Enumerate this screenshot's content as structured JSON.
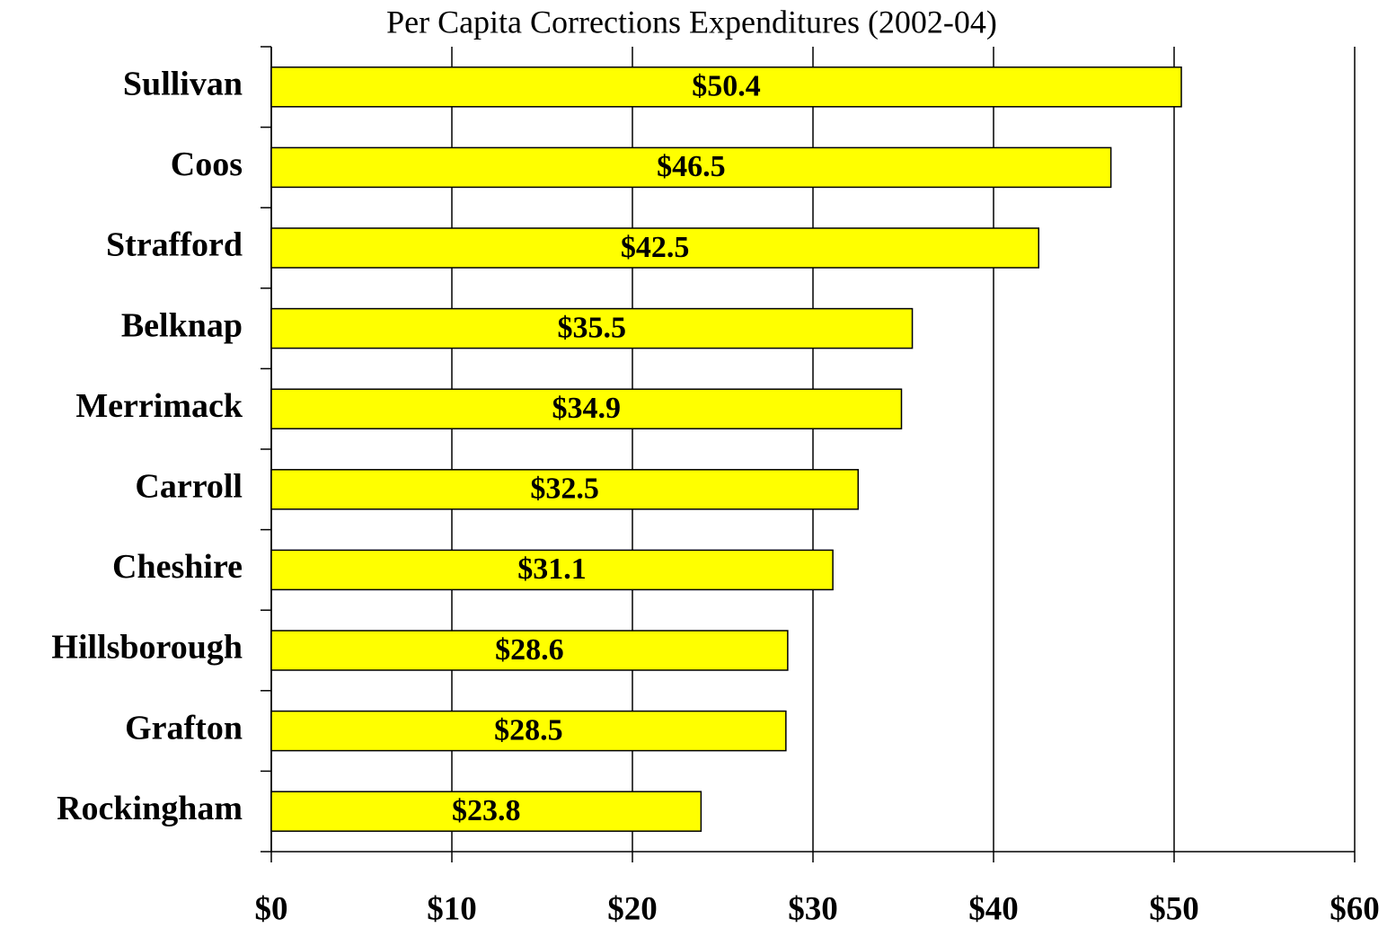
{
  "chart_data": {
    "type": "bar",
    "orientation": "horizontal",
    "title": "Per Capita Corrections Expenditures (2002-04)",
    "categories": [
      "Sullivan",
      "Coos",
      "Strafford",
      "Belknap",
      "Merrimack",
      "Carroll",
      "Cheshire",
      "Hillsborough",
      "Grafton",
      "Rockingham"
    ],
    "values": [
      50.4,
      46.5,
      42.5,
      35.5,
      34.9,
      32.5,
      31.1,
      28.6,
      28.5,
      23.8
    ],
    "value_labels": [
      "$50.4",
      "$46.5",
      "$42.5",
      "$35.5",
      "$34.9",
      "$32.5",
      "$31.1",
      "$28.6",
      "$28.5",
      "$23.8"
    ],
    "color": "#ffff00",
    "xlim": [
      0,
      60
    ],
    "xticks": [
      {
        "value": 0,
        "label": "$0"
      },
      {
        "value": 10,
        "label": "$10"
      },
      {
        "value": 20,
        "label": "$20"
      },
      {
        "value": 30,
        "label": "$30"
      },
      {
        "value": 40,
        "label": "$40"
      },
      {
        "value": 50,
        "label": "$50"
      },
      {
        "value": 60,
        "label": "$60"
      }
    ],
    "grid": true
  }
}
